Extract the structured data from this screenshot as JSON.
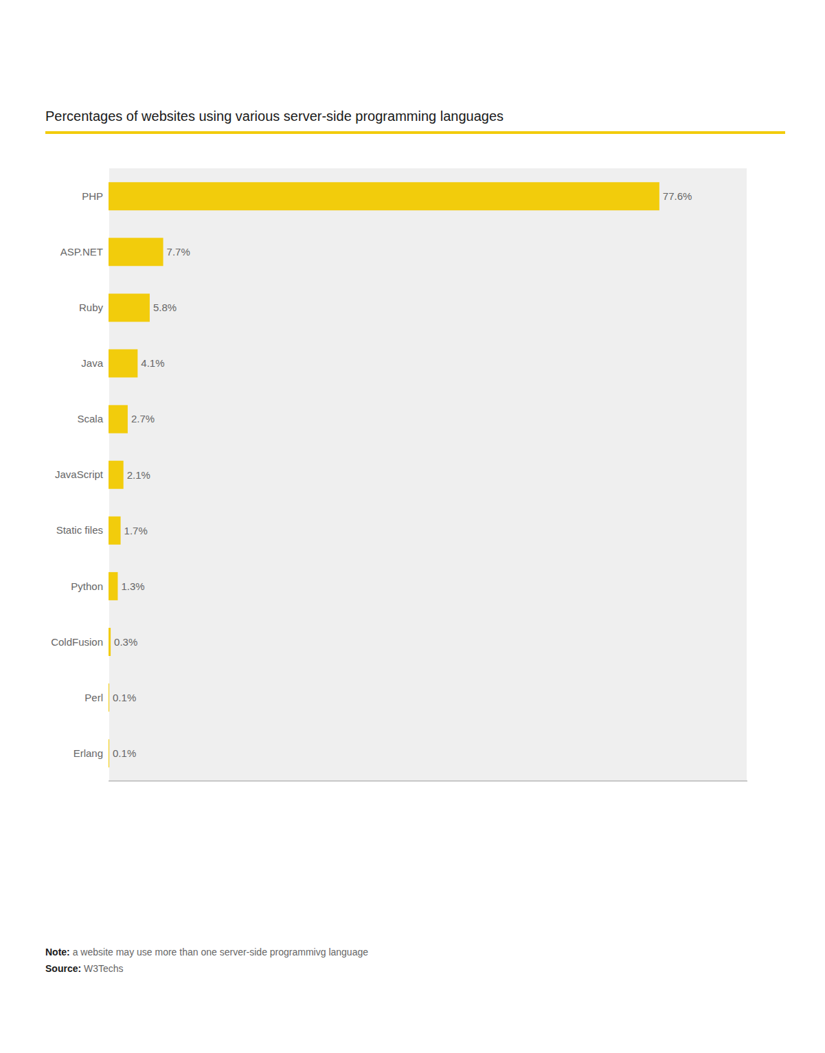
{
  "chart_data": {
    "type": "bar",
    "orientation": "horizontal",
    "title": "Percentages of websites using various server-side programming languages",
    "categories": [
      "PHP",
      "ASP.NET",
      "Ruby",
      "Java",
      "Scala",
      "JavaScript",
      "Static files",
      "Python",
      "ColdFusion",
      "Perl",
      "Erlang"
    ],
    "values": [
      77.6,
      7.7,
      5.8,
      4.1,
      2.7,
      2.1,
      1.7,
      1.3,
      0.3,
      0.1,
      0.1
    ],
    "value_labels": [
      "77.6%",
      "7.7%",
      "5.8%",
      "4.1%",
      "2.7%",
      "2.1%",
      "1.7%",
      "1.3%",
      "0.3%",
      "0.1%",
      "0.1%"
    ],
    "data_labels": true,
    "color": "#F2CC0C",
    "xlim": [
      0,
      90
    ],
    "xticks": [
      0,
      18,
      36,
      54,
      72,
      90
    ],
    "grid": true,
    "tick_labels": "y",
    "annotations": [
      "Note: a website may use more than one server-side programmivg language",
      "Source: W3Techs"
    ]
  }
}
